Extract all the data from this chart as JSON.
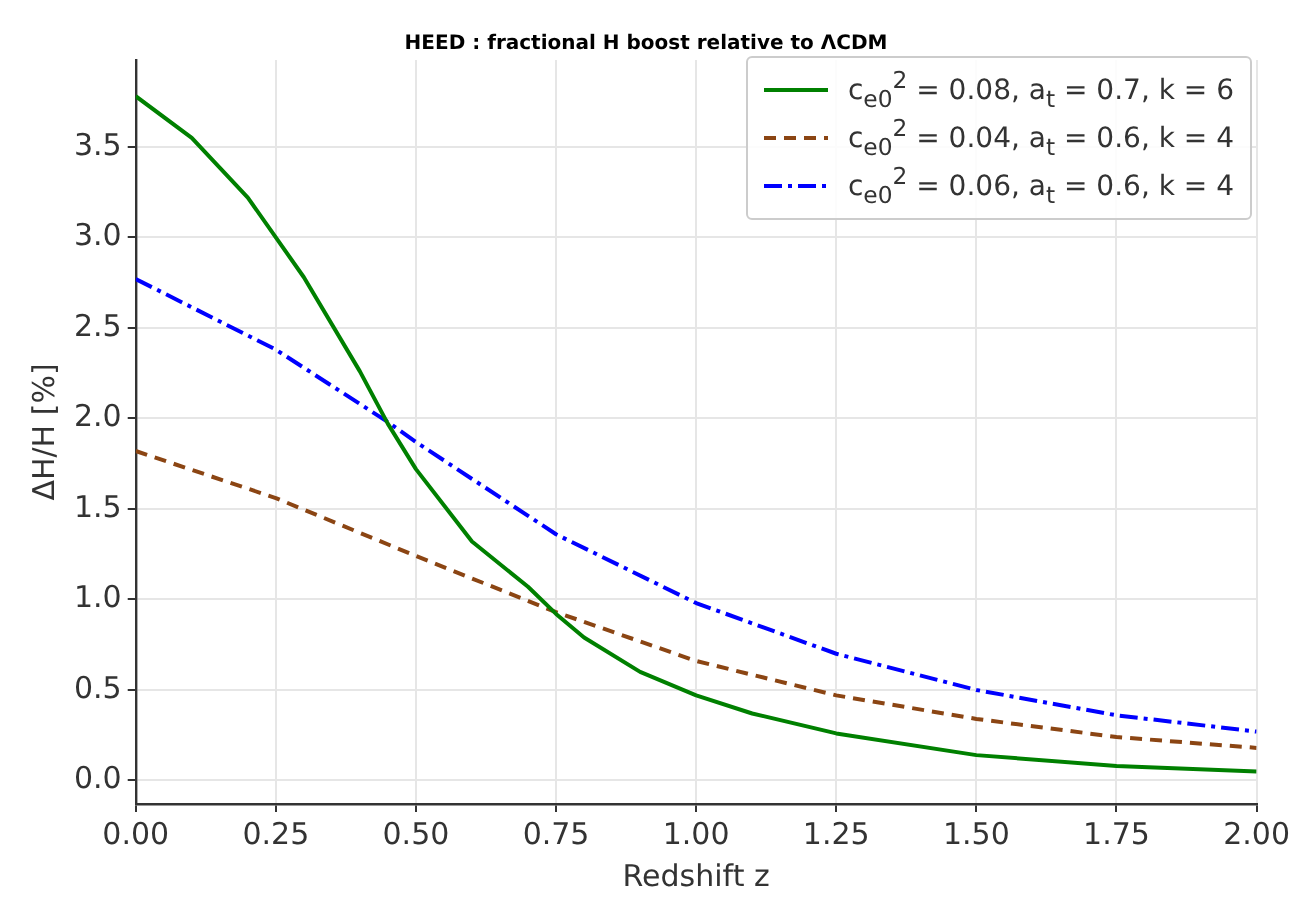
{
  "chart_data": {
    "type": "line",
    "title": "HEED : fractional H boost relative to ΛCDM",
    "xlabel": "Redshift z",
    "ylabel": "ΔH/H [%]",
    "xlim": [
      0,
      2
    ],
    "ylim": [
      -0.13,
      3.98
    ],
    "xticks": [
      {
        "value": 0,
        "label": "0.00"
      },
      {
        "value": 0.25,
        "label": "0.25"
      },
      {
        "value": 0.5,
        "label": "0.50"
      },
      {
        "value": 0.75,
        "label": "0.75"
      },
      {
        "value": 1,
        "label": "1.00"
      },
      {
        "value": 1.25,
        "label": "1.25"
      },
      {
        "value": 1.5,
        "label": "1.50"
      },
      {
        "value": 1.75,
        "label": "1.75"
      },
      {
        "value": 2,
        "label": "2.00"
      }
    ],
    "yticks": [
      {
        "value": 0,
        "label": "0.0"
      },
      {
        "value": 0.5,
        "label": "0.5"
      },
      {
        "value": 1,
        "label": "1.0"
      },
      {
        "value": 1.5,
        "label": "1.5"
      },
      {
        "value": 2,
        "label": "2.0"
      },
      {
        "value": 2.5,
        "label": "2.5"
      },
      {
        "value": 3,
        "label": "3.0"
      },
      {
        "value": 3.5,
        "label": "3.5"
      }
    ],
    "grid": true,
    "legend": "top right",
    "marker": "none",
    "series": [
      {
        "name": "c$_{e0}$$^{2}$ = 0.08,  a$_{t}$ = 0.7,  k = 6",
        "color": "#008000",
        "line_style": "solid",
        "x": [
          0,
          0.1,
          0.2,
          0.3,
          0.4,
          0.45,
          0.5,
          0.6,
          0.7,
          0.75,
          0.8,
          0.9,
          1.0,
          1.1,
          1.25,
          1.5,
          1.75,
          2.0
        ],
        "values": [
          3.78,
          3.55,
          3.22,
          2.78,
          2.26,
          1.97,
          1.72,
          1.32,
          1.07,
          0.92,
          0.79,
          0.6,
          0.47,
          0.37,
          0.26,
          0.14,
          0.08,
          0.05
        ]
      },
      {
        "name": "c$_{e0}$$^{2}$ = 0.04,  a$_{t}$ = 0.6,  k = 4",
        "color": "#8b4513",
        "line_style": "dashed",
        "x": [
          0,
          0.25,
          0.5,
          0.75,
          1.0,
          1.25,
          1.5,
          1.75,
          2.0
        ],
        "values": [
          1.82,
          1.56,
          1.24,
          0.93,
          0.66,
          0.47,
          0.34,
          0.24,
          0.18
        ]
      },
      {
        "name": "c$_{e0}$$^{2}$ = 0.06,  a$_{t}$ = 0.6,  k = 4",
        "color": "#0000ff",
        "line_style": "dashdot",
        "x": [
          0,
          0.25,
          0.45,
          0.5,
          0.75,
          1.0,
          1.25,
          1.5,
          1.75,
          2.0
        ],
        "values": [
          2.77,
          2.38,
          1.98,
          1.87,
          1.36,
          0.98,
          0.7,
          0.5,
          0.36,
          0.27
        ]
      }
    ]
  }
}
